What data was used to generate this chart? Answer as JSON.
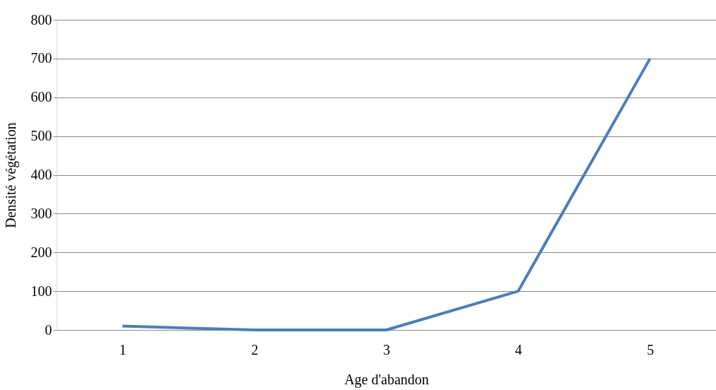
{
  "chart_data": {
    "type": "line",
    "xlabel": "Age d'abandon",
    "ylabel": "Densité végétation",
    "categories": [
      "1",
      "2",
      "3",
      "4",
      "5"
    ],
    "values": [
      10,
      0,
      0,
      100,
      700
    ],
    "color": "#4a7ebb",
    "ylim": [
      0,
      800
    ],
    "yticks": [
      0,
      100,
      200,
      300,
      400,
      500,
      600,
      700,
      800
    ],
    "grid": "y"
  }
}
